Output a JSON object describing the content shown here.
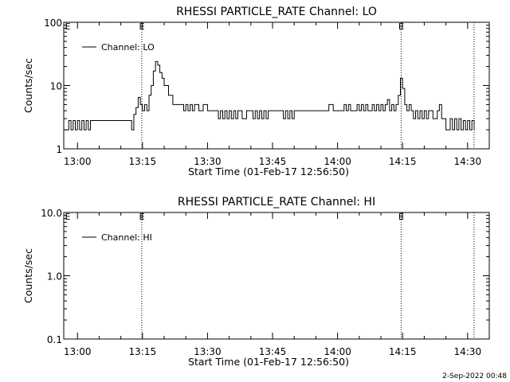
{
  "footer_timestamp": "2-Sep-2022 00:48",
  "chart_data": [
    {
      "type": "line",
      "title": "RHESSI PARTICLE_RATE Channel: LO",
      "xlabel": "Start Time (01-Feb-17 12:56:50)",
      "ylabel": "Counts/sec",
      "yscale": "log",
      "ylim": [
        1,
        100
      ],
      "xlim": [
        "12:56:50",
        "14:35:00"
      ],
      "x_ticks": [
        "13:00",
        "13:15",
        "13:30",
        "13:45",
        "14:00",
        "14:15",
        "14:30"
      ],
      "y_ticks": [
        "1",
        "10",
        "100"
      ],
      "legend": "top-left",
      "grid": false,
      "marker_lines": [
        {
          "time": "13:14:50",
          "label": "E"
        },
        {
          "time": "14:14:40",
          "label": "E"
        },
        {
          "time": "14:31:30",
          "label": ""
        }
      ],
      "series": [
        {
          "name": "Channel: LO",
          "x": [
            "12:57:00",
            "12:58:00",
            "12:58:30",
            "12:59:00",
            "12:59:30",
            "13:00:00",
            "13:00:30",
            "13:01:00",
            "13:01:30",
            "13:02:00",
            "13:02:30",
            "13:03:00",
            "13:04:00",
            "13:06:00",
            "13:08:00",
            "13:10:00",
            "13:12:00",
            "13:12:30",
            "13:13:00",
            "13:13:30",
            "13:14:00",
            "13:14:30",
            "13:15:00",
            "13:15:30",
            "13:16:00",
            "13:16:30",
            "13:17:00",
            "13:17:30",
            "13:18:00",
            "13:18:30",
            "13:19:00",
            "13:19:30",
            "13:20:00",
            "13:21:00",
            "13:22:00",
            "13:24:00",
            "13:24:30",
            "13:25:00",
            "13:25:30",
            "13:26:00",
            "13:26:30",
            "13:27:00",
            "13:28:00",
            "13:29:00",
            "13:30:00",
            "13:31:00",
            "13:32:00",
            "13:32:30",
            "13:33:00",
            "13:33:30",
            "13:34:00",
            "13:34:30",
            "13:35:00",
            "13:35:30",
            "13:36:00",
            "13:36:30",
            "13:37:00",
            "13:38:00",
            "13:39:00",
            "13:40:00",
            "13:40:30",
            "13:41:00",
            "13:41:30",
            "13:42:00",
            "13:42:30",
            "13:43:00",
            "13:43:30",
            "13:44:00",
            "13:45:00",
            "13:46:00",
            "13:47:00",
            "13:47:30",
            "13:48:00",
            "13:48:30",
            "13:49:00",
            "13:49:30",
            "13:50:00",
            "13:51:00",
            "13:52:00",
            "13:54:00",
            "13:56:00",
            "13:57:00",
            "13:58:00",
            "13:59:00",
            "14:00:00",
            "14:01:00",
            "14:01:30",
            "14:02:00",
            "14:02:30",
            "14:03:00",
            "14:04:00",
            "14:04:30",
            "14:05:00",
            "14:05:30",
            "14:06:00",
            "14:06:30",
            "14:07:00",
            "14:08:00",
            "14:08:30",
            "14:09:00",
            "14:09:30",
            "14:10:00",
            "14:10:30",
            "14:11:00",
            "14:11:30",
            "14:12:00",
            "14:12:30",
            "14:13:00",
            "14:13:30",
            "14:14:00",
            "14:14:30",
            "14:15:00",
            "14:15:30",
            "14:16:00",
            "14:16:30",
            "14:17:00",
            "14:17:30",
            "14:18:00",
            "14:18:30",
            "14:19:00",
            "14:19:30",
            "14:20:00",
            "14:20:30",
            "14:21:00",
            "14:22:00",
            "14:22:30",
            "14:23:00",
            "14:23:30",
            "14:24:00",
            "14:24:30",
            "14:25:00",
            "14:25:30",
            "14:26:00",
            "14:26:30",
            "14:27:00",
            "14:27:30",
            "14:28:00",
            "14:28:30",
            "14:29:00",
            "14:29:30",
            "14:30:00",
            "14:30:30",
            "14:31:00",
            "14:31:30"
          ],
          "y": [
            2,
            2.8,
            2,
            2.8,
            2,
            2.8,
            2,
            2.8,
            2,
            2.8,
            2,
            2.8,
            2.8,
            2.8,
            2.8,
            2.8,
            2.8,
            2,
            3.5,
            4.5,
            6.5,
            5,
            4,
            5,
            4,
            7,
            10,
            17,
            24,
            21,
            16,
            13,
            10,
            7,
            5,
            5,
            4,
            5,
            4,
            5,
            4,
            5,
            4,
            5,
            4,
            4,
            4,
            3,
            4,
            3,
            4,
            3,
            4,
            3,
            4,
            3,
            4,
            3,
            4,
            4,
            3,
            4,
            3,
            4,
            3,
            4,
            3,
            4,
            4,
            4,
            4,
            3,
            4,
            3,
            4,
            3,
            4,
            4,
            4,
            4,
            4,
            4,
            5,
            4,
            4,
            4,
            5,
            4,
            5,
            4,
            4,
            5,
            4,
            5,
            4,
            5,
            4,
            5,
            4,
            5,
            4,
            5,
            4,
            5,
            6,
            4,
            5,
            4,
            5,
            7,
            13,
            9,
            5,
            4,
            5,
            4,
            3,
            4,
            3,
            4,
            3,
            4,
            3,
            4,
            3,
            3,
            4,
            5,
            3,
            3,
            2,
            2,
            3,
            2,
            3,
            2,
            3,
            2,
            2.8,
            2,
            2.8,
            2,
            2.8,
            2
          ]
        }
      ]
    },
    {
      "type": "line",
      "title": "RHESSI PARTICLE_RATE Channel: HI",
      "xlabel": "Start Time (01-Feb-17 12:56:50)",
      "ylabel": "Counts/sec",
      "yscale": "log",
      "ylim": [
        0.1,
        10.0
      ],
      "xlim": [
        "12:56:50",
        "14:35:00"
      ],
      "x_ticks": [
        "13:00",
        "13:15",
        "13:30",
        "13:45",
        "14:00",
        "14:15",
        "14:30"
      ],
      "y_ticks": [
        "0.1",
        "1.0",
        "10.0"
      ],
      "legend": "top-left",
      "grid": false,
      "marker_lines": [
        {
          "time": "13:14:50",
          "label": "E"
        },
        {
          "time": "14:14:40",
          "label": "E"
        },
        {
          "time": "14:31:30",
          "label": ""
        }
      ],
      "series": [
        {
          "name": "Channel: HI",
          "x": [],
          "y": []
        }
      ]
    }
  ]
}
